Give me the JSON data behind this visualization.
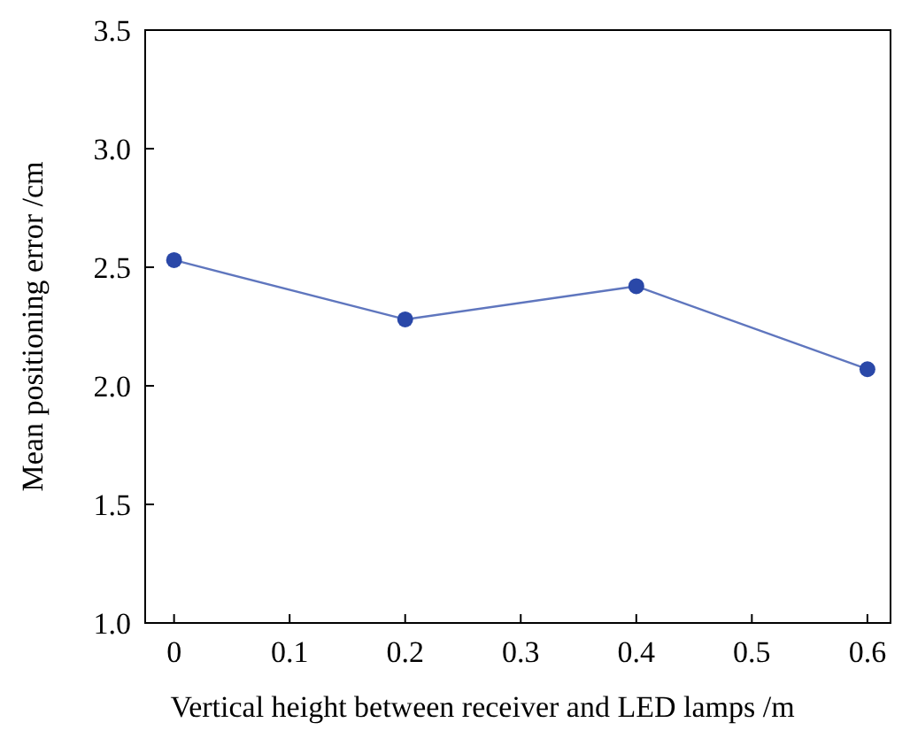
{
  "chart_data": {
    "type": "line",
    "xlabel": "Vertical height between receiver and LED lamps /m",
    "ylabel": "Mean positioning error /cm",
    "x": [
      0,
      0.2,
      0.4,
      0.6
    ],
    "series": [
      {
        "color": "#2a48a8",
        "values": [
          2.53,
          2.28,
          2.42,
          2.07
        ]
      }
    ],
    "xlim": [
      -0.025,
      0.62
    ],
    "xticks": [
      0,
      0.1,
      0.2,
      0.3,
      0.4,
      0.5,
      0.6
    ],
    "ylim": [
      1.0,
      3.5
    ],
    "yticks": [
      {
        "value": 1,
        "label": "1.0"
      },
      1.5,
      {
        "value": 2,
        "label": "2.0"
      },
      2.5,
      {
        "value": 3,
        "label": "3.0"
      },
      3.5
    ],
    "marker": "circle",
    "line_style": "solid"
  }
}
